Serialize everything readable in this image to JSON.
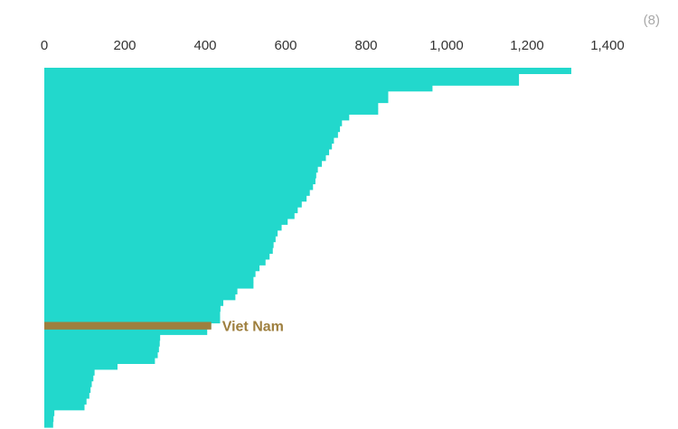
{
  "badge": "(8)",
  "colors": {
    "bar": "#22d8cc",
    "highlight": "#9e7f3e",
    "tick_text": "#333333",
    "badge_text": "#a9a9a9"
  },
  "chart_data": {
    "type": "bar",
    "orientation": "horizontal",
    "sorted": "descending",
    "xlim": [
      0,
      1400
    ],
    "xticks": [
      0,
      200,
      400,
      600,
      800,
      1000,
      1200,
      1400
    ],
    "xtick_labels": [
      "0",
      "200",
      "400",
      "600",
      "800",
      "1,000",
      "1,200",
      "1,400"
    ],
    "axis_position": "top",
    "grid": false,
    "legend": "none",
    "values": [
      1310,
      1180,
      1180,
      965,
      855,
      855,
      830,
      830,
      758,
      740,
      735,
      730,
      720,
      715,
      708,
      700,
      690,
      680,
      676,
      674,
      668,
      660,
      652,
      640,
      630,
      622,
      605,
      590,
      580,
      575,
      570,
      568,
      560,
      550,
      535,
      525,
      520,
      520,
      480,
      475,
      445,
      438,
      437,
      437,
      415,
      405,
      288,
      287,
      285,
      282,
      275,
      182,
      125,
      122,
      118,
      115,
      112,
      105,
      100,
      25,
      23,
      22
    ],
    "highlight": {
      "label": "Viet Nam",
      "value": 415
    }
  }
}
